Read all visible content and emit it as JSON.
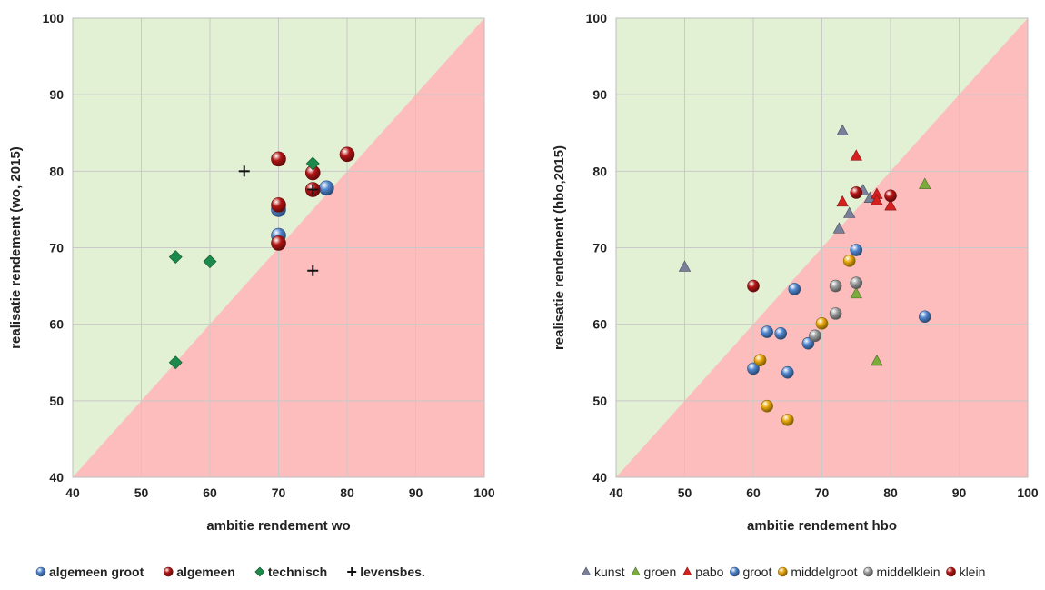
{
  "colors": {
    "above_region": "#e2f0d4",
    "below_region": "#fdbdbd",
    "algemeen_groot": "#4f86cf",
    "algemeen": "#b31414",
    "technisch": "#1c8a4a",
    "levensbes": "#111111",
    "kunst": "#7a7f9a",
    "groen": "#7aac3c",
    "pabo": "#d62020",
    "groot": "#4f86cf",
    "middelgroot": "#e8a80a",
    "middelklein": "#9a9a9a",
    "klein": "#b31414"
  },
  "chart_data": [
    {
      "type": "scatter",
      "xlabel": "ambitie rendement wo",
      "ylabel": "realisatie rendement (wo, 2015)",
      "xlim": [
        40,
        100
      ],
      "ylim": [
        40,
        100
      ],
      "xticks": [
        "40",
        "50",
        "60",
        "70",
        "80",
        "90",
        "100"
      ],
      "yticks": [
        "40",
        "50",
        "60",
        "70",
        "80",
        "90",
        "100"
      ],
      "grid": true,
      "regions": "above diagonal y=x green, below red",
      "legend_position": "bottom",
      "legend_bold": true,
      "series": [
        {
          "name": "algemeen groot",
          "key": "algemeen_groot",
          "marker": "sphere",
          "points": [
            [
              70,
              75
            ],
            [
              70,
              71.6
            ],
            [
              77,
              77.8
            ]
          ]
        },
        {
          "name": "algemeen",
          "key": "algemeen",
          "marker": "sphere",
          "points": [
            [
              70,
              81.6
            ],
            [
              70,
              75.6
            ],
            [
              70,
              70.6
            ],
            [
              75,
              79.8
            ],
            [
              75,
              77.6
            ],
            [
              80,
              82.2
            ]
          ]
        },
        {
          "name": "technisch",
          "key": "technisch",
          "marker": "diamond",
          "points": [
            [
              55,
              68.8
            ],
            [
              60,
              68.2
            ],
            [
              55,
              55
            ],
            [
              75,
              81
            ]
          ]
        },
        {
          "name": "levensbes.",
          "key": "levensbes",
          "marker": "plus",
          "points": [
            [
              65,
              80
            ],
            [
              75,
              77.6
            ],
            [
              75,
              67
            ]
          ]
        }
      ]
    },
    {
      "type": "scatter",
      "xlabel": "ambitie rendement hbo",
      "ylabel": "realisatie rendement (hbo,2015)",
      "xlim": [
        40,
        100
      ],
      "ylim": [
        40,
        100
      ],
      "xticks": [
        "40",
        "50",
        "60",
        "70",
        "80",
        "90",
        "100"
      ],
      "yticks": [
        "40",
        "50",
        "60",
        "70",
        "80",
        "90",
        "100"
      ],
      "grid": true,
      "regions": "above diagonal y=x green, below red",
      "legend_position": "bottom",
      "legend_bold": false,
      "series": [
        {
          "name": "kunst",
          "key": "kunst",
          "marker": "triangle",
          "points": [
            [
              73,
              85.3
            ],
            [
              72.5,
              72.5
            ],
            [
              74,
              74.5
            ],
            [
              76,
              77.5
            ],
            [
              77,
              76.5
            ],
            [
              50,
              67.5
            ]
          ]
        },
        {
          "name": "groen",
          "key": "groen",
          "marker": "triangle",
          "points": [
            [
              85,
              78.3
            ],
            [
              75,
              64
            ],
            [
              78,
              55.2
            ]
          ]
        },
        {
          "name": "pabo",
          "key": "pabo",
          "marker": "triangle",
          "points": [
            [
              75,
              82
            ],
            [
              73,
              76
            ],
            [
              78,
              77
            ],
            [
              78,
              76.2
            ],
            [
              80,
              75.5
            ]
          ]
        },
        {
          "name": "groot",
          "key": "groot",
          "marker": "sphere",
          "points": [
            [
              75,
              69.7
            ],
            [
              66,
              64.6
            ],
            [
              62,
              59
            ],
            [
              64,
              58.8
            ],
            [
              60,
              54.2
            ],
            [
              65,
              53.7
            ],
            [
              68,
              57.5
            ],
            [
              85,
              61
            ]
          ]
        },
        {
          "name": "middelgroot",
          "key": "middelgroot",
          "marker": "sphere",
          "points": [
            [
              74,
              68.3
            ],
            [
              70,
              60.1
            ],
            [
              61,
              55.3
            ],
            [
              62,
              49.3
            ],
            [
              65,
              47.5
            ]
          ]
        },
        {
          "name": "middelklein",
          "key": "middelklein",
          "marker": "sphere",
          "points": [
            [
              72,
              65
            ],
            [
              75,
              65.4
            ],
            [
              72,
              61.4
            ],
            [
              69,
              58.5
            ]
          ]
        },
        {
          "name": "klein",
          "key": "klein",
          "marker": "sphere",
          "points": [
            [
              60,
              65
            ],
            [
              75,
              77.2
            ],
            [
              80,
              76.8
            ]
          ]
        }
      ]
    }
  ]
}
